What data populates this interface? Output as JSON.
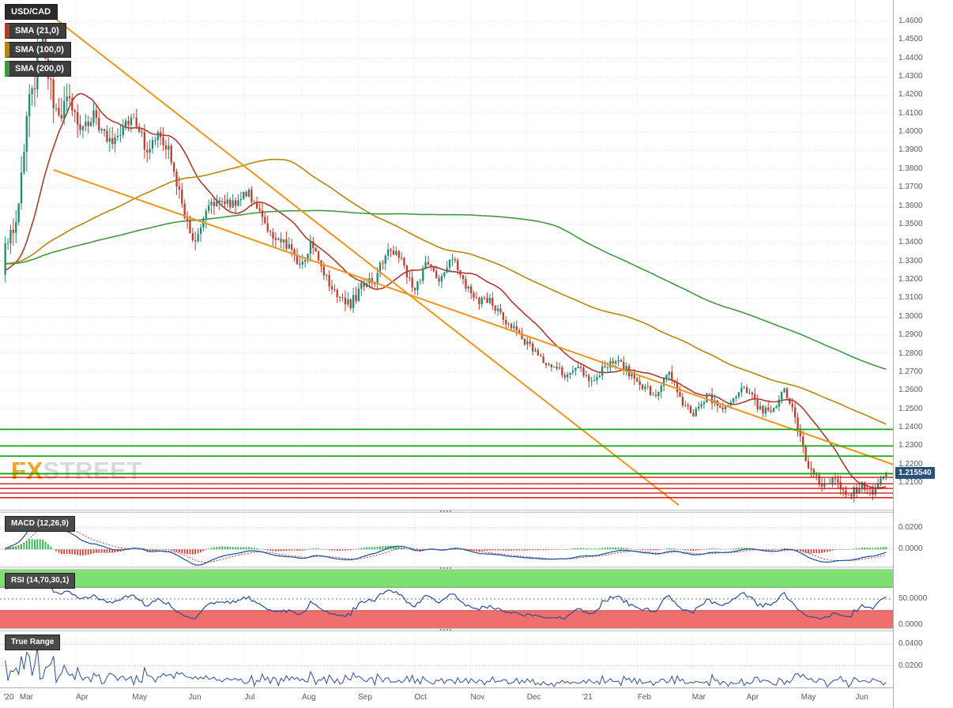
{
  "app": {
    "watermark_fx": "FX",
    "watermark_street": "STREET"
  },
  "legend": {
    "symbol": "USD/CAD",
    "indicators": [
      {
        "id": "sma-21",
        "label": "SMA (21,0)",
        "color": "#b03a2e"
      },
      {
        "id": "sma-100",
        "label": "SMA (100,0)",
        "color": "#b8860b"
      },
      {
        "id": "sma-200",
        "label": "SMA (200,0)",
        "color": "#3f9b3f"
      }
    ]
  },
  "panes": {
    "macd": {
      "label": "MACD (12,26,9)",
      "ticks": [
        "0.0200",
        "0.0000"
      ]
    },
    "rsi": {
      "label": "RSI (14,70,30,1)",
      "ticks": [
        "50.0000",
        "0.0000"
      ]
    },
    "true_range": {
      "label": "True Range",
      "ticks": [
        "0.0400",
        "0.0200"
      ]
    }
  },
  "price_axis": {
    "ticks": [
      "1.4600",
      "1.4500",
      "1.4400",
      "1.4300",
      "1.4200",
      "1.4100",
      "1.4000",
      "1.3900",
      "1.3800",
      "1.3700",
      "1.3600",
      "1.3500",
      "1.3400",
      "1.3300",
      "1.3200",
      "1.3100",
      "1.3000",
      "1.2900",
      "1.2800",
      "1.2700",
      "1.2600",
      "1.2500",
      "1.2400",
      "1.2300",
      "1.2200",
      "1.2100"
    ],
    "current_price": "1.215540"
  },
  "time_axis": {
    "labels": [
      {
        "text": "'20",
        "x": 0.004
      },
      {
        "text": "Mar",
        "x": 0.022
      },
      {
        "text": "Apr",
        "x": 0.085
      },
      {
        "text": "May",
        "x": 0.148
      },
      {
        "text": "Jun",
        "x": 0.211
      },
      {
        "text": "Jul",
        "x": 0.274
      },
      {
        "text": "Aug",
        "x": 0.338
      },
      {
        "text": "Sep",
        "x": 0.401
      },
      {
        "text": "Oct",
        "x": 0.464
      },
      {
        "text": "Nov",
        "x": 0.527
      },
      {
        "text": "Dec",
        "x": 0.59
      },
      {
        "text": "'21",
        "x": 0.652
      },
      {
        "text": "Feb",
        "x": 0.714
      },
      {
        "text": "Mar",
        "x": 0.775
      },
      {
        "text": "Apr",
        "x": 0.836
      },
      {
        "text": "May",
        "x": 0.897
      },
      {
        "text": "Jun",
        "x": 0.958
      }
    ]
  },
  "chart_data": {
    "type": "candlestick",
    "symbol": "USD/CAD",
    "x_range": [
      "Mar 2020",
      "Jun 2021"
    ],
    "y_range": [
      1.1955,
      1.4715
    ],
    "current_price": 1.21554,
    "candle_count": 330,
    "pre_series_level": 1.3285,
    "weekly_closes": [
      1.336,
      1.356,
      1.423,
      1.45,
      1.409,
      1.418,
      1.402,
      1.408,
      1.395,
      1.401,
      1.411,
      1.39,
      1.402,
      1.387,
      1.353,
      1.341,
      1.359,
      1.365,
      1.36,
      1.369,
      1.354,
      1.341,
      1.339,
      1.327,
      1.339,
      1.323,
      1.31,
      1.306,
      1.317,
      1.32,
      1.339,
      1.331,
      1.314,
      1.329,
      1.321,
      1.332,
      1.318,
      1.308,
      1.31,
      1.298,
      1.292,
      1.284,
      1.277,
      1.273,
      1.268,
      1.272,
      1.264,
      1.273,
      1.277,
      1.268,
      1.261,
      1.259,
      1.27,
      1.254,
      1.247,
      1.258,
      1.251,
      1.256,
      1.262,
      1.25,
      1.248,
      1.261,
      1.242,
      1.216,
      1.208,
      1.211,
      1.202,
      1.209,
      1.205,
      1.2155
    ],
    "weekly_volatility": [
      0.007,
      0.009,
      0.014,
      0.015,
      0.012,
      0.009,
      0.008,
      0.007,
      0.007,
      0.007,
      0.007,
      0.006,
      0.006,
      0.006,
      0.007,
      0.006,
      0.006,
      0.005,
      0.005,
      0.005,
      0.005,
      0.005,
      0.005,
      0.005,
      0.005,
      0.004,
      0.004,
      0.005,
      0.005,
      0.004,
      0.005,
      0.004,
      0.004,
      0.004,
      0.004,
      0.004,
      0.004,
      0.004,
      0.004,
      0.004,
      0.004,
      0.004,
      0.003,
      0.003,
      0.003,
      0.004,
      0.004,
      0.004,
      0.004,
      0.004,
      0.004,
      0.004,
      0.004,
      0.004,
      0.004,
      0.004,
      0.004,
      0.004,
      0.004,
      0.004,
      0.004,
      0.004,
      0.004,
      0.005,
      0.004,
      0.004,
      0.004,
      0.004,
      0.004,
      0.003
    ],
    "sma_overlays": [
      {
        "period": 21,
        "color": "#b03a2e"
      },
      {
        "period": 100,
        "color": "#b8860b"
      },
      {
        "period": 200,
        "color": "#3f9b3f"
      }
    ],
    "trendlines": [
      {
        "x0": 0.055,
        "p0": 1.464,
        "x1": 0.76,
        "p1": 1.198,
        "color": "#f0941d"
      },
      {
        "x0": 0.06,
        "p0": 1.3795,
        "x1": 1.0,
        "p1": 1.22,
        "color": "#f0941d"
      }
    ],
    "levels": {
      "green": [
        1.239,
        1.23,
        1.2245,
        1.215
      ],
      "red": [
        1.213,
        1.2095,
        1.207,
        1.2045,
        1.202
      ]
    },
    "indicators": {
      "macd": {
        "fast": 12,
        "slow": 26,
        "signal": 9,
        "range": [
          -0.016,
          0.034
        ]
      },
      "rsi": {
        "period": 14,
        "upper": 70,
        "lower": 30,
        "range": [
          0,
          100
        ]
      },
      "true_range": {
        "range": [
          0,
          0.052
        ]
      }
    },
    "colors": {
      "candle_up": "#1f8a70",
      "candle_down": "#c23b2e",
      "trendline": "#f0941d",
      "level_green": "#11a611",
      "level_red": "#d40000",
      "macd_line": "#1a4f9c",
      "macd_signal": "#cc3b3b",
      "hist_up": "#2db84c",
      "hist_down": "#e03c31",
      "rsi_line": "#2b4ea0",
      "tr_line": "#2b4ea0",
      "rsi_upper_band": "#7fdf72",
      "rsi_lower_band": "#ee6f6b",
      "current_price_bg": "#27537a"
    }
  }
}
